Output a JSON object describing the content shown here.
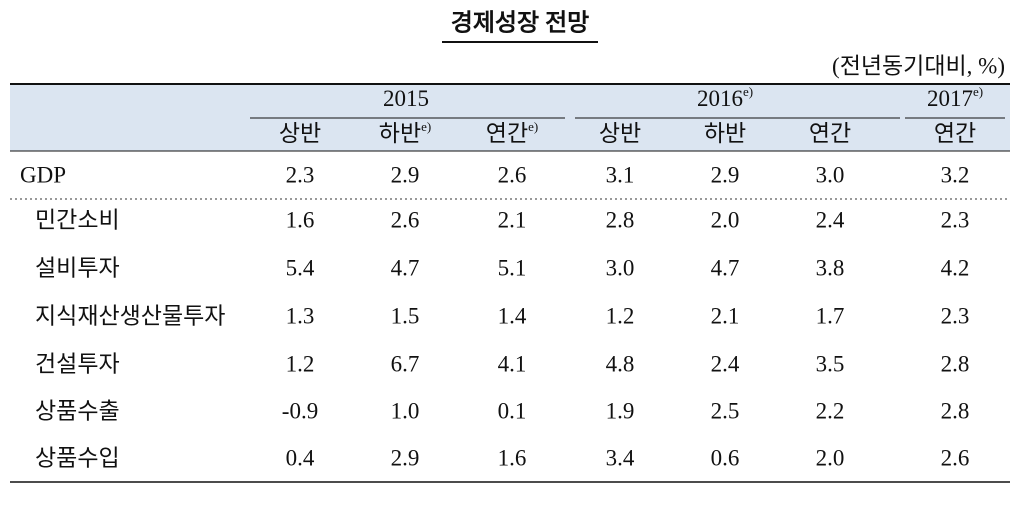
{
  "title": "경제성장 전망",
  "unit_note": "(전년동기대비, %)",
  "table": {
    "years": [
      {
        "label": "2015",
        "span": 3
      },
      {
        "label": "2016",
        "note": "e)",
        "span": 3
      },
      {
        "label": "2017",
        "note": "e)",
        "span": 1
      }
    ],
    "columns": [
      {
        "label": "상반"
      },
      {
        "label": "하반",
        "note": "e)"
      },
      {
        "label": "연간",
        "note": "e)"
      },
      {
        "label": "상반"
      },
      {
        "label": "하반"
      },
      {
        "label": "연간"
      },
      {
        "label": "연간"
      }
    ],
    "rows": [
      {
        "label": "GDP",
        "values": [
          "2.3",
          "2.9",
          "2.6",
          "3.1",
          "2.9",
          "3.0",
          "3.2"
        ]
      },
      {
        "label": "민간소비",
        "values": [
          "1.6",
          "2.6",
          "2.1",
          "2.8",
          "2.0",
          "2.4",
          "2.3"
        ]
      },
      {
        "label": "설비투자",
        "values": [
          "5.4",
          "4.7",
          "5.1",
          "3.0",
          "4.7",
          "3.8",
          "4.2"
        ]
      },
      {
        "label": "지식재산생산물투자",
        "values": [
          "1.3",
          "1.5",
          "1.4",
          "1.2",
          "2.1",
          "1.7",
          "2.3"
        ]
      },
      {
        "label": "건설투자",
        "values": [
          "1.2",
          "6.7",
          "4.1",
          "4.8",
          "2.4",
          "3.5",
          "2.8"
        ]
      },
      {
        "label": "상품수출",
        "values": [
          "-0.9",
          "1.0",
          "0.1",
          "1.9",
          "2.5",
          "2.2",
          "2.8"
        ]
      },
      {
        "label": "상품수입",
        "values": [
          "0.4",
          "2.9",
          "1.6",
          "3.4",
          "0.6",
          "2.0",
          "2.6"
        ]
      }
    ]
  }
}
